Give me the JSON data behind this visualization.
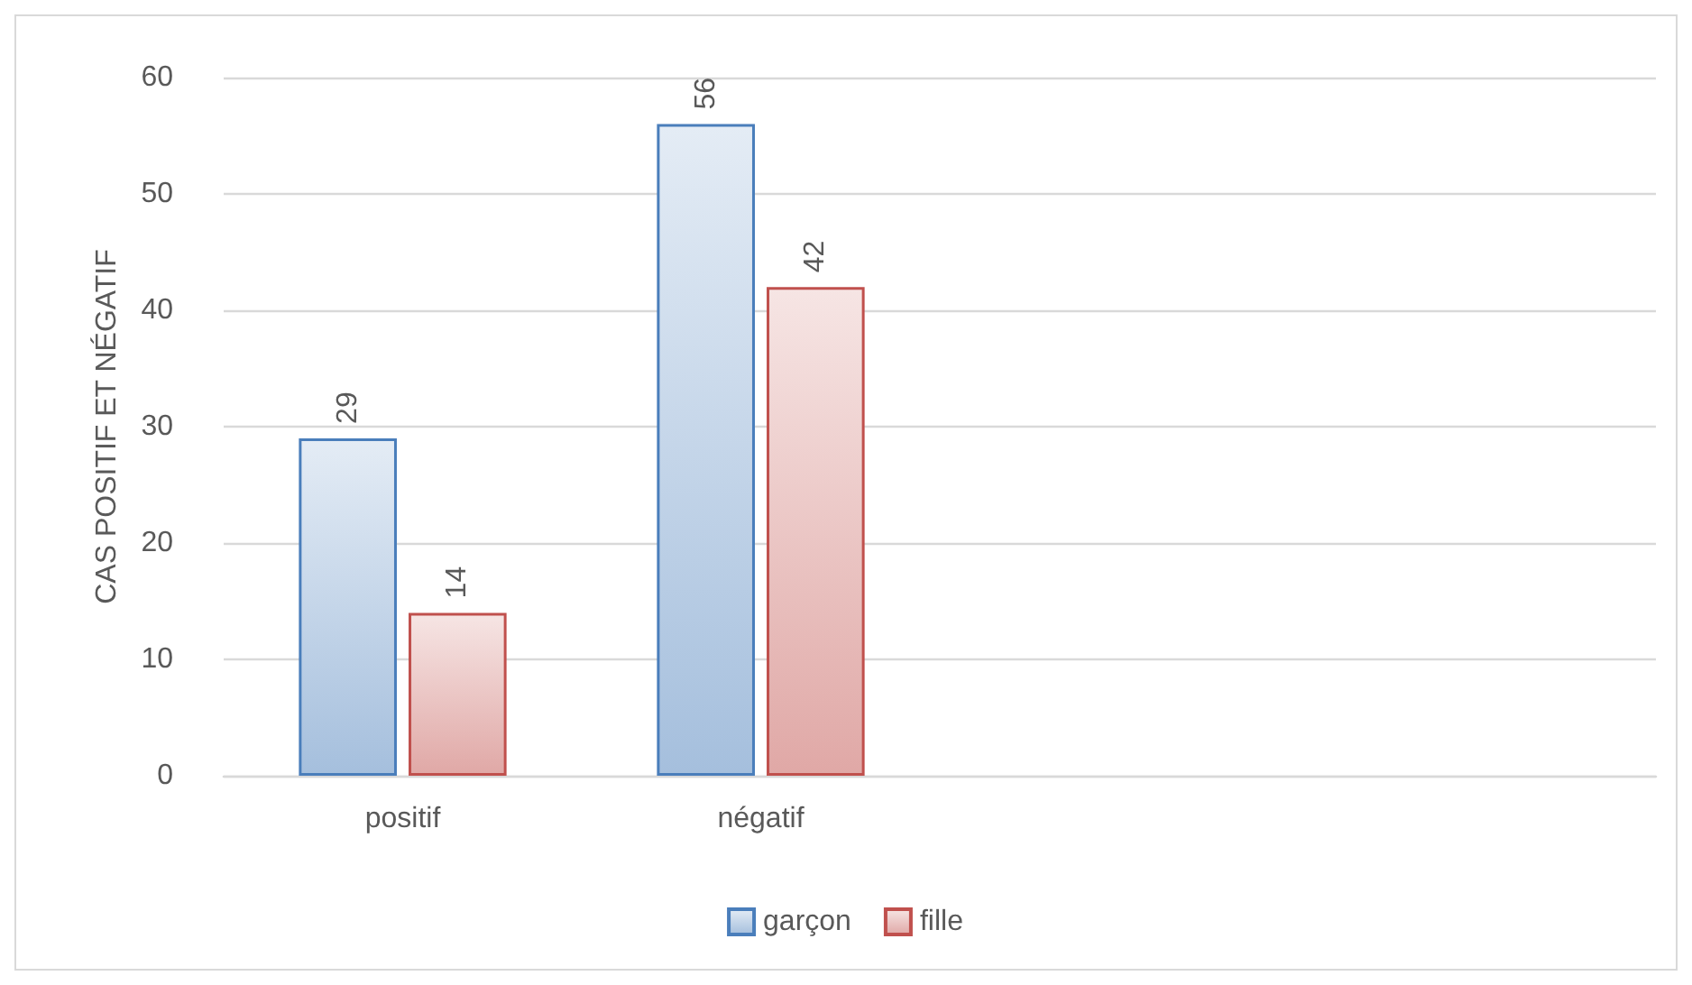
{
  "chart_data": {
    "type": "bar",
    "ylabel": "CAS POSITIF ET NÉGATIF",
    "categories": [
      "positif",
      "négatif",
      null,
      null
    ],
    "series": [
      {
        "name": "garçon",
        "color": "#4a7ebb",
        "values": [
          29,
          56,
          null,
          null
        ]
      },
      {
        "name": "fille",
        "color": "#c0504d",
        "values": [
          14,
          42,
          null,
          null
        ]
      }
    ],
    "ylim": [
      0,
      60
    ],
    "yticks": [
      0,
      10,
      20,
      30,
      40,
      50,
      60
    ],
    "grid": "y",
    "legend": "bottom",
    "data_labels": true
  }
}
